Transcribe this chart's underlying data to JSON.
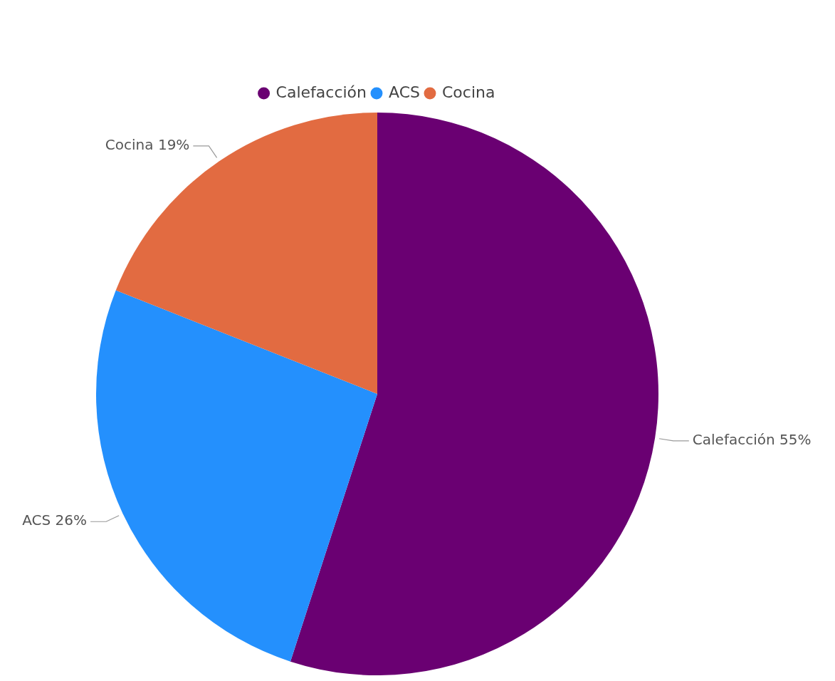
{
  "chart_data": {
    "type": "pie",
    "categories": [
      "Calefacción",
      "ACS",
      "Cocina"
    ],
    "values": [
      55,
      26,
      19
    ],
    "colors": [
      "#6a0072",
      "#2490fd",
      "#e26b41"
    ],
    "value_labels": [
      "Calefacción 55%",
      "ACS 26%",
      "Cocina 19%"
    ],
    "legend": "top"
  }
}
